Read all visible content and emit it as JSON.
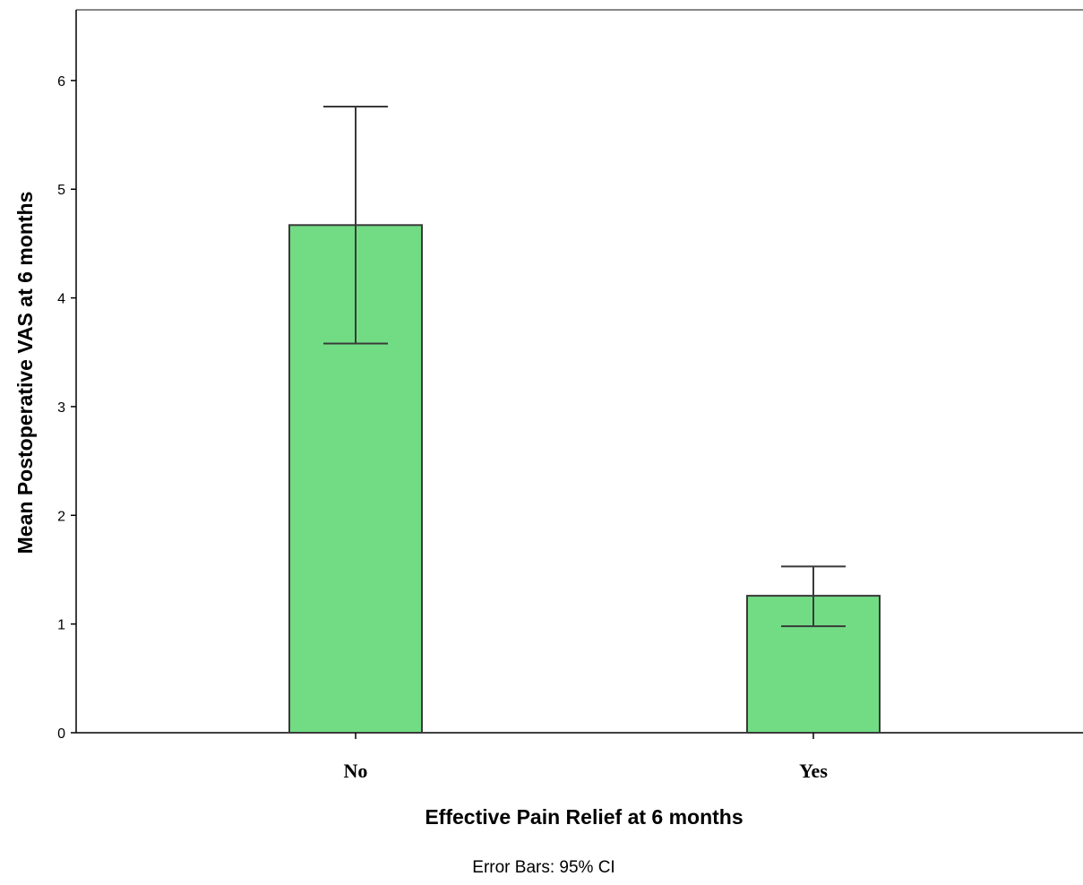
{
  "chart_data": {
    "type": "bar",
    "categories": [
      "No",
      "Yes"
    ],
    "values": [
      4.67,
      1.26
    ],
    "error_bars": {
      "label": "Error Bars: 95% CI",
      "lower": [
        3.58,
        0.98
      ],
      "upper": [
        5.76,
        1.53
      ]
    },
    "xlabel": "Effective Pain Relief at 6 months",
    "ylabel": "Mean Postoperative VAS at 6 months",
    "ylim": [
      0,
      6.65
    ],
    "yticks": [
      "0",
      "1",
      "2",
      "3",
      "4",
      "5",
      "6"
    ],
    "grid": false,
    "colors": {
      "bar_fill": "#72dc84",
      "bar_stroke": "#3a3a3a",
      "axis": "#000000",
      "error_bar": "#3a3a3a",
      "frame_top": "#888888"
    }
  }
}
